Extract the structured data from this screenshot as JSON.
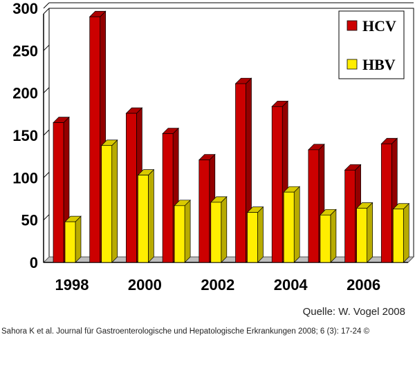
{
  "chart_data": {
    "type": "bar",
    "categories": [
      "1998",
      "1999",
      "2000",
      "2001",
      "2002",
      "2003",
      "2004",
      "2005",
      "2006",
      "2007"
    ],
    "x_tick_labels": [
      "1998",
      "2000",
      "2002",
      "2004",
      "2006"
    ],
    "series": [
      {
        "name": "HCV",
        "color": "#cc0000",
        "values": [
          165,
          290,
          176,
          152,
          121,
          211,
          184,
          133,
          109,
          140
        ]
      },
      {
        "name": "HBV",
        "color": "#ffee00",
        "values": [
          48,
          138,
          103,
          67,
          71,
          59,
          83,
          56,
          64,
          63
        ]
      }
    ],
    "ylim": [
      0,
      300
    ],
    "yticks": [
      "0",
      "50",
      "100",
      "150",
      "200",
      "250",
      "300"
    ],
    "grid": true,
    "legend_position": "top-right"
  },
  "source_note": "Quelle: W. Vogel 2008",
  "citation": "Sahora K et al. Journal für Gastroenterologische und Hepatologische Erkrankungen 2008; 6 (3): 17-24 ©"
}
